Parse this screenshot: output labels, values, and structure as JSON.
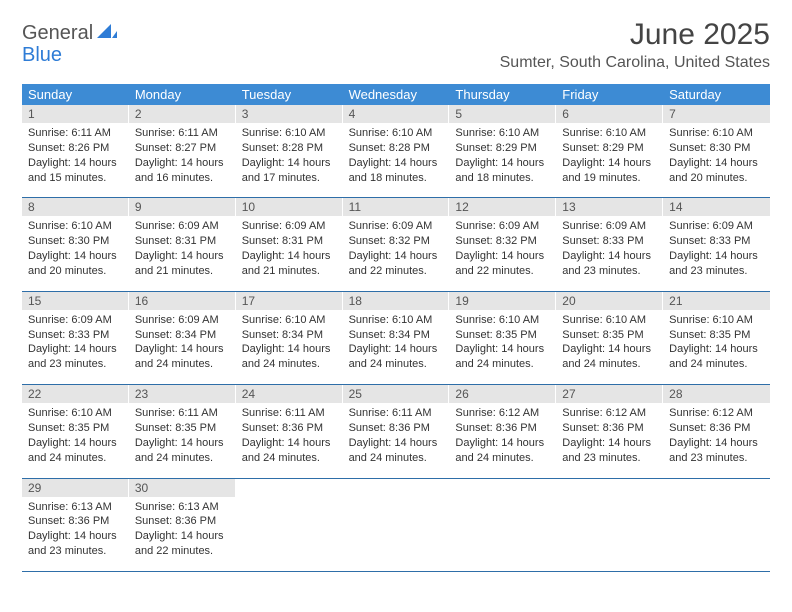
{
  "brand": {
    "part1": "General",
    "part2": "Blue"
  },
  "title": "June 2025",
  "location": "Sumter, South Carolina, United States",
  "colors": {
    "header_bg": "#3d8bd4",
    "daynum_bg": "#e5e5e5",
    "rule": "#2e6ea8",
    "brand_blue": "#2e7cd6",
    "text": "#333333"
  },
  "typography": {
    "title_fontsize": 30,
    "location_fontsize": 16,
    "dayhead_fontsize": 13,
    "daynum_fontsize": 12,
    "cell_fontsize": 11
  },
  "day_headers": [
    "Sunday",
    "Monday",
    "Tuesday",
    "Wednesday",
    "Thursday",
    "Friday",
    "Saturday"
  ],
  "weeks": [
    [
      {
        "n": "1",
        "sr": "Sunrise: 6:11 AM",
        "ss": "Sunset: 8:26 PM",
        "d1": "Daylight: 14 hours",
        "d2": "and 15 minutes."
      },
      {
        "n": "2",
        "sr": "Sunrise: 6:11 AM",
        "ss": "Sunset: 8:27 PM",
        "d1": "Daylight: 14 hours",
        "d2": "and 16 minutes."
      },
      {
        "n": "3",
        "sr": "Sunrise: 6:10 AM",
        "ss": "Sunset: 8:28 PM",
        "d1": "Daylight: 14 hours",
        "d2": "and 17 minutes."
      },
      {
        "n": "4",
        "sr": "Sunrise: 6:10 AM",
        "ss": "Sunset: 8:28 PM",
        "d1": "Daylight: 14 hours",
        "d2": "and 18 minutes."
      },
      {
        "n": "5",
        "sr": "Sunrise: 6:10 AM",
        "ss": "Sunset: 8:29 PM",
        "d1": "Daylight: 14 hours",
        "d2": "and 18 minutes."
      },
      {
        "n": "6",
        "sr": "Sunrise: 6:10 AM",
        "ss": "Sunset: 8:29 PM",
        "d1": "Daylight: 14 hours",
        "d2": "and 19 minutes."
      },
      {
        "n": "7",
        "sr": "Sunrise: 6:10 AM",
        "ss": "Sunset: 8:30 PM",
        "d1": "Daylight: 14 hours",
        "d2": "and 20 minutes."
      }
    ],
    [
      {
        "n": "8",
        "sr": "Sunrise: 6:10 AM",
        "ss": "Sunset: 8:30 PM",
        "d1": "Daylight: 14 hours",
        "d2": "and 20 minutes."
      },
      {
        "n": "9",
        "sr": "Sunrise: 6:09 AM",
        "ss": "Sunset: 8:31 PM",
        "d1": "Daylight: 14 hours",
        "d2": "and 21 minutes."
      },
      {
        "n": "10",
        "sr": "Sunrise: 6:09 AM",
        "ss": "Sunset: 8:31 PM",
        "d1": "Daylight: 14 hours",
        "d2": "and 21 minutes."
      },
      {
        "n": "11",
        "sr": "Sunrise: 6:09 AM",
        "ss": "Sunset: 8:32 PM",
        "d1": "Daylight: 14 hours",
        "d2": "and 22 minutes."
      },
      {
        "n": "12",
        "sr": "Sunrise: 6:09 AM",
        "ss": "Sunset: 8:32 PM",
        "d1": "Daylight: 14 hours",
        "d2": "and 22 minutes."
      },
      {
        "n": "13",
        "sr": "Sunrise: 6:09 AM",
        "ss": "Sunset: 8:33 PM",
        "d1": "Daylight: 14 hours",
        "d2": "and 23 minutes."
      },
      {
        "n": "14",
        "sr": "Sunrise: 6:09 AM",
        "ss": "Sunset: 8:33 PM",
        "d1": "Daylight: 14 hours",
        "d2": "and 23 minutes."
      }
    ],
    [
      {
        "n": "15",
        "sr": "Sunrise: 6:09 AM",
        "ss": "Sunset: 8:33 PM",
        "d1": "Daylight: 14 hours",
        "d2": "and 23 minutes."
      },
      {
        "n": "16",
        "sr": "Sunrise: 6:09 AM",
        "ss": "Sunset: 8:34 PM",
        "d1": "Daylight: 14 hours",
        "d2": "and 24 minutes."
      },
      {
        "n": "17",
        "sr": "Sunrise: 6:10 AM",
        "ss": "Sunset: 8:34 PM",
        "d1": "Daylight: 14 hours",
        "d2": "and 24 minutes."
      },
      {
        "n": "18",
        "sr": "Sunrise: 6:10 AM",
        "ss": "Sunset: 8:34 PM",
        "d1": "Daylight: 14 hours",
        "d2": "and 24 minutes."
      },
      {
        "n": "19",
        "sr": "Sunrise: 6:10 AM",
        "ss": "Sunset: 8:35 PM",
        "d1": "Daylight: 14 hours",
        "d2": "and 24 minutes."
      },
      {
        "n": "20",
        "sr": "Sunrise: 6:10 AM",
        "ss": "Sunset: 8:35 PM",
        "d1": "Daylight: 14 hours",
        "d2": "and 24 minutes."
      },
      {
        "n": "21",
        "sr": "Sunrise: 6:10 AM",
        "ss": "Sunset: 8:35 PM",
        "d1": "Daylight: 14 hours",
        "d2": "and 24 minutes."
      }
    ],
    [
      {
        "n": "22",
        "sr": "Sunrise: 6:10 AM",
        "ss": "Sunset: 8:35 PM",
        "d1": "Daylight: 14 hours",
        "d2": "and 24 minutes."
      },
      {
        "n": "23",
        "sr": "Sunrise: 6:11 AM",
        "ss": "Sunset: 8:35 PM",
        "d1": "Daylight: 14 hours",
        "d2": "and 24 minutes."
      },
      {
        "n": "24",
        "sr": "Sunrise: 6:11 AM",
        "ss": "Sunset: 8:36 PM",
        "d1": "Daylight: 14 hours",
        "d2": "and 24 minutes."
      },
      {
        "n": "25",
        "sr": "Sunrise: 6:11 AM",
        "ss": "Sunset: 8:36 PM",
        "d1": "Daylight: 14 hours",
        "d2": "and 24 minutes."
      },
      {
        "n": "26",
        "sr": "Sunrise: 6:12 AM",
        "ss": "Sunset: 8:36 PM",
        "d1": "Daylight: 14 hours",
        "d2": "and 24 minutes."
      },
      {
        "n": "27",
        "sr": "Sunrise: 6:12 AM",
        "ss": "Sunset: 8:36 PM",
        "d1": "Daylight: 14 hours",
        "d2": "and 23 minutes."
      },
      {
        "n": "28",
        "sr": "Sunrise: 6:12 AM",
        "ss": "Sunset: 8:36 PM",
        "d1": "Daylight: 14 hours",
        "d2": "and 23 minutes."
      }
    ],
    [
      {
        "n": "29",
        "sr": "Sunrise: 6:13 AM",
        "ss": "Sunset: 8:36 PM",
        "d1": "Daylight: 14 hours",
        "d2": "and 23 minutes."
      },
      {
        "n": "30",
        "sr": "Sunrise: 6:13 AM",
        "ss": "Sunset: 8:36 PM",
        "d1": "Daylight: 14 hours",
        "d2": "and 22 minutes."
      },
      null,
      null,
      null,
      null,
      null
    ]
  ]
}
